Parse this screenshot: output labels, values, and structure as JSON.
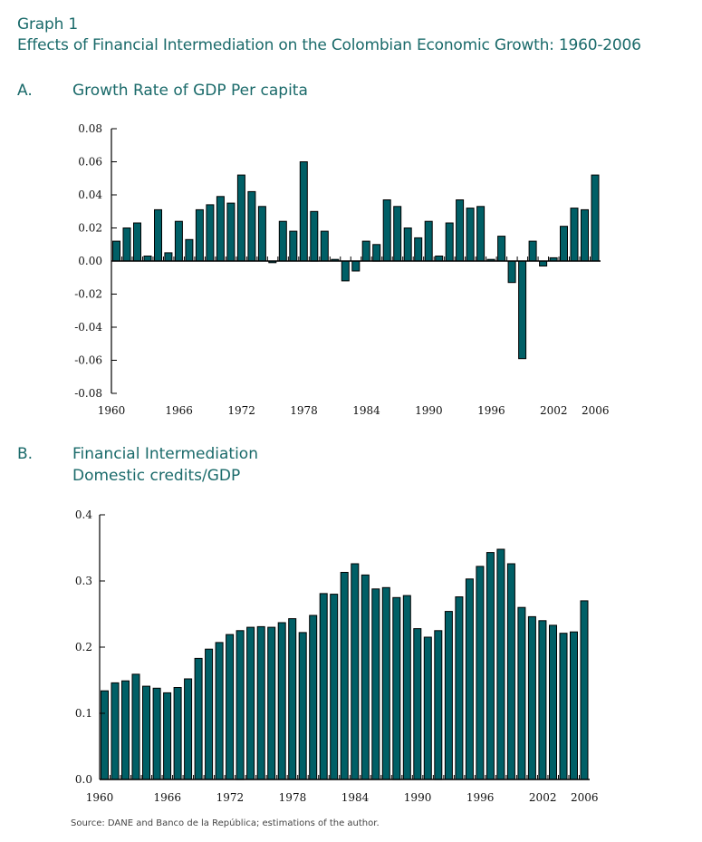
{
  "header": {
    "graph_label": "Graph 1",
    "title": "Effects of Financial Intermediation on the Colombian Economic Growth: 1960-2006"
  },
  "panels": [
    {
      "letter": "A.",
      "title_lines": [
        "Growth Rate of GDP Per capita"
      ]
    },
    {
      "letter": "B.",
      "title_lines": [
        "Financial Intermediation",
        "Domestic credits/GDP"
      ]
    }
  ],
  "source": "Source: DANE and Banco de la República; estimations of the author.",
  "colors": {
    "bar_fill": "#005f66",
    "bar_stroke": "#000000",
    "title_text": "#1a6a6a"
  },
  "chart_data": [
    {
      "type": "bar",
      "title": "Growth Rate of GDP Per capita",
      "xlabel": "",
      "ylabel": "",
      "ylim": [
        -0.08,
        0.08
      ],
      "yticks": [
        "0.08",
        "0.06",
        "0.04",
        "0.02",
        "0.00",
        "-0.02",
        "-0.04",
        "-0.06",
        "-0.08"
      ],
      "ytick_values": [
        0.08,
        0.06,
        0.04,
        0.02,
        0.0,
        -0.02,
        -0.04,
        -0.06,
        -0.08
      ],
      "xtick_labels": [
        "1960",
        "1966",
        "1972",
        "1978",
        "1984",
        "1990",
        "1996",
        "2002",
        "2006"
      ],
      "grid": false,
      "categories": [
        1960,
        1961,
        1962,
        1963,
        1964,
        1965,
        1966,
        1967,
        1968,
        1969,
        1970,
        1971,
        1972,
        1973,
        1974,
        1975,
        1976,
        1977,
        1978,
        1979,
        1980,
        1981,
        1982,
        1983,
        1984,
        1985,
        1986,
        1987,
        1988,
        1989,
        1990,
        1991,
        1992,
        1993,
        1994,
        1995,
        1996,
        1997,
        1998,
        1999,
        2000,
        2001,
        2002,
        2003,
        2004,
        2005,
        2006
      ],
      "values": [
        0.012,
        0.02,
        0.023,
        0.003,
        0.031,
        0.005,
        0.024,
        0.013,
        0.031,
        0.034,
        0.039,
        0.035,
        0.052,
        0.042,
        0.033,
        -0.001,
        0.024,
        0.018,
        0.06,
        0.03,
        0.018,
        0.001,
        -0.012,
        -0.006,
        0.012,
        0.01,
        0.037,
        0.033,
        0.02,
        0.014,
        0.024,
        0.003,
        0.023,
        0.037,
        0.032,
        0.033,
        0.001,
        0.015,
        -0.013,
        -0.059,
        0.012,
        -0.003,
        0.002,
        0.021,
        0.032,
        0.031,
        0.052
      ]
    },
    {
      "type": "bar",
      "title": "Financial Intermediation — Domestic credits/GDP",
      "xlabel": "",
      "ylabel": "",
      "ylim": [
        0.0,
        0.4
      ],
      "yticks": [
        "0.4",
        "0.3",
        "0.2",
        "0.1",
        "0.0"
      ],
      "ytick_values": [
        0.4,
        0.3,
        0.2,
        0.1,
        0.0
      ],
      "xtick_labels": [
        "1960",
        "1966",
        "1972",
        "1978",
        "1984",
        "1990",
        "1996",
        "2002",
        "2006"
      ],
      "grid": false,
      "categories": [
        1960,
        1961,
        1962,
        1963,
        1964,
        1965,
        1966,
        1967,
        1968,
        1969,
        1970,
        1971,
        1972,
        1973,
        1974,
        1975,
        1976,
        1977,
        1978,
        1979,
        1980,
        1981,
        1982,
        1983,
        1984,
        1985,
        1986,
        1987,
        1988,
        1989,
        1990,
        1991,
        1992,
        1993,
        1994,
        1995,
        1996,
        1997,
        1998,
        1999,
        2000,
        2001,
        2002,
        2003,
        2004,
        2005,
        2006
      ],
      "values": [
        0.134,
        0.146,
        0.149,
        0.159,
        0.141,
        0.138,
        0.131,
        0.139,
        0.152,
        0.183,
        0.197,
        0.207,
        0.219,
        0.225,
        0.23,
        0.231,
        0.23,
        0.237,
        0.243,
        0.222,
        0.248,
        0.281,
        0.28,
        0.313,
        0.326,
        0.309,
        0.288,
        0.29,
        0.275,
        0.278,
        0.228,
        0.215,
        0.225,
        0.254,
        0.276,
        0.303,
        0.322,
        0.343,
        0.348,
        0.326,
        0.26,
        0.246,
        0.24,
        0.233,
        0.221,
        0.223,
        0.27
      ]
    }
  ]
}
